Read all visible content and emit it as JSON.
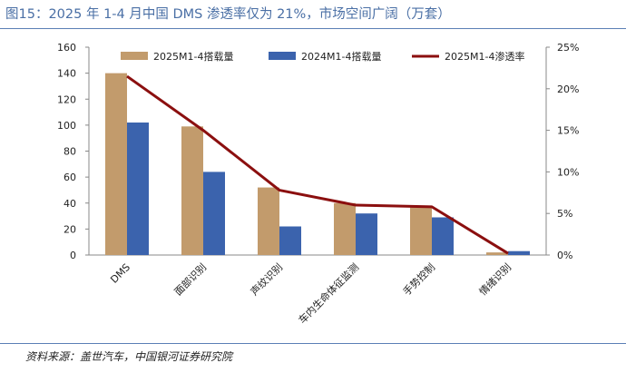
{
  "figure": {
    "title": "图15：2025 年 1-4 月中国 DMS 渗透率仅为 21%，市场空间广阔（万套）",
    "source": "资料来源：盖世汽车，中国银河证券研究院"
  },
  "chart_data": {
    "type": "bar",
    "categories": [
      "DMS",
      "面部识别",
      "声纹识别",
      "车内生命体征监测",
      "手势控制",
      "情绪识别"
    ],
    "series": [
      {
        "name": "2025M1-4搭载量",
        "type": "bar",
        "axis": "left",
        "color": "#c29b6c",
        "values": [
          140,
          99,
          52,
          40,
          37,
          2
        ]
      },
      {
        "name": "2024M1-4搭载量",
        "type": "bar",
        "axis": "left",
        "color": "#3b63ad",
        "values": [
          102,
          64,
          22,
          32,
          29,
          3
        ]
      },
      {
        "name": "2025M1-4渗透率",
        "type": "line",
        "axis": "right",
        "color": "#8b0f0f",
        "values": [
          21.5,
          15.0,
          7.8,
          6.0,
          5.8,
          0.2
        ]
      }
    ],
    "y_left": {
      "min": 0,
      "max": 160,
      "ticks": [
        "0",
        "20",
        "40",
        "60",
        "80",
        "100",
        "120",
        "140",
        "160"
      ]
    },
    "y_right": {
      "min": 0,
      "max": 25,
      "ticks": [
        "0%",
        "5%",
        "10%",
        "15%",
        "20%",
        "25%"
      ]
    },
    "grid": false,
    "legend": "top"
  }
}
